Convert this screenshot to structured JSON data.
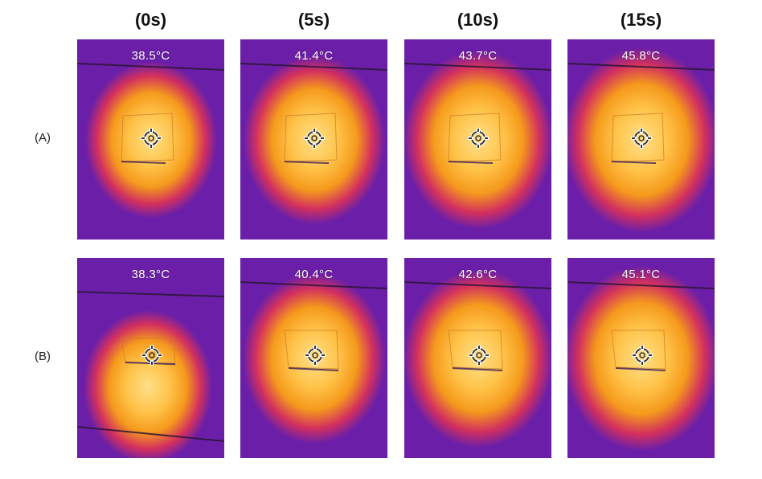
{
  "figure": {
    "columns": [
      "(0s)",
      "(5s)",
      "(10s)",
      "(15s)"
    ],
    "rows": [
      {
        "label": "(A)",
        "temperatures": [
          "38.5°C",
          "41.4°C",
          "43.7°C",
          "45.8°C"
        ]
      },
      {
        "label": "(B)",
        "temperatures": [
          "38.3°C",
          "40.4°C",
          "42.6°C",
          "45.1°C"
        ]
      }
    ]
  },
  "colors": {
    "cold": "#6b1fa8",
    "mid": "#d3305e",
    "warm": "#f59a1c",
    "hot": "#ffe08a"
  },
  "icons": {
    "measurement_point": "crosshair-icon"
  }
}
